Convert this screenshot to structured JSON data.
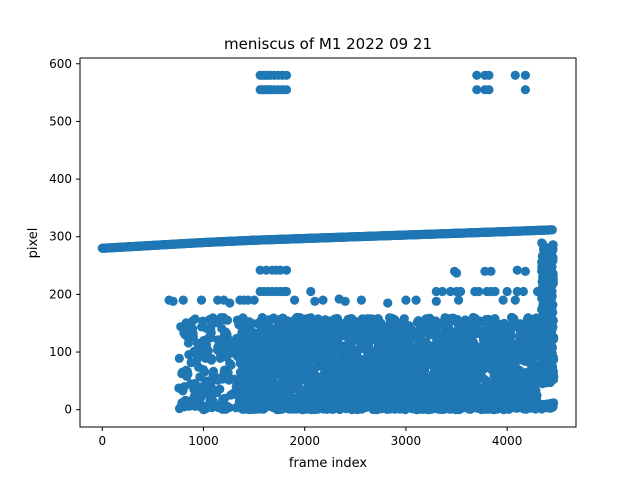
{
  "chart_data": {
    "type": "scatter",
    "title": "meniscus of M1 2022 09 21",
    "xlabel": "frame index",
    "ylabel": "pixel",
    "xlim": [
      -220,
      4680
    ],
    "ylim": [
      -30,
      610
    ],
    "xticks": [
      0,
      1000,
      2000,
      3000,
      4000
    ],
    "yticks": [
      0,
      100,
      200,
      300,
      400,
      500,
      600
    ],
    "grid": false,
    "legend": "none",
    "marker_color": "#1f77b4",
    "series": [
      {
        "kind": "trend_line",
        "x": [
          0,
          500,
          1000,
          1500,
          2000,
          2500,
          3000,
          3500,
          4000,
          4450
        ],
        "y": [
          280,
          285,
          290,
          294,
          297,
          300,
          303,
          306,
          309,
          312
        ]
      },
      {
        "kind": "upper_clusters",
        "points": [
          {
            "x": 1560,
            "y": 580
          },
          {
            "x": 1580,
            "y": 580
          },
          {
            "x": 1600,
            "y": 580
          },
          {
            "x": 1620,
            "y": 580
          },
          {
            "x": 1640,
            "y": 580
          },
          {
            "x": 1660,
            "y": 580
          },
          {
            "x": 1700,
            "y": 580
          },
          {
            "x": 1740,
            "y": 580
          },
          {
            "x": 1780,
            "y": 580
          },
          {
            "x": 1820,
            "y": 580
          },
          {
            "x": 1560,
            "y": 555
          },
          {
            "x": 1580,
            "y": 555
          },
          {
            "x": 1600,
            "y": 555
          },
          {
            "x": 1620,
            "y": 555
          },
          {
            "x": 1640,
            "y": 555
          },
          {
            "x": 1660,
            "y": 555
          },
          {
            "x": 1700,
            "y": 555
          },
          {
            "x": 1740,
            "y": 555
          },
          {
            "x": 1780,
            "y": 555
          },
          {
            "x": 1820,
            "y": 555
          },
          {
            "x": 3700,
            "y": 580
          },
          {
            "x": 3780,
            "y": 580
          },
          {
            "x": 3820,
            "y": 580
          },
          {
            "x": 3700,
            "y": 555
          },
          {
            "x": 3780,
            "y": 555
          },
          {
            "x": 3820,
            "y": 555
          },
          {
            "x": 4080,
            "y": 580
          },
          {
            "x": 4180,
            "y": 580
          },
          {
            "x": 4180,
            "y": 555
          }
        ]
      },
      {
        "kind": "level_240",
        "points": [
          {
            "x": 1560,
            "y": 242
          },
          {
            "x": 1620,
            "y": 242
          },
          {
            "x": 1680,
            "y": 242
          },
          {
            "x": 1720,
            "y": 242
          },
          {
            "x": 1760,
            "y": 242
          },
          {
            "x": 1820,
            "y": 242
          },
          {
            "x": 3480,
            "y": 240
          },
          {
            "x": 3500,
            "y": 237
          },
          {
            "x": 3780,
            "y": 240
          },
          {
            "x": 3840,
            "y": 240
          },
          {
            "x": 4100,
            "y": 242
          },
          {
            "x": 4180,
            "y": 240
          }
        ]
      },
      {
        "kind": "level_205",
        "points": [
          {
            "x": 1560,
            "y": 205
          },
          {
            "x": 1600,
            "y": 205
          },
          {
            "x": 1640,
            "y": 205
          },
          {
            "x": 1680,
            "y": 205
          },
          {
            "x": 1720,
            "y": 205
          },
          {
            "x": 1760,
            "y": 205
          },
          {
            "x": 1800,
            "y": 205
          },
          {
            "x": 1820,
            "y": 205
          },
          {
            "x": 2060,
            "y": 205
          },
          {
            "x": 3300,
            "y": 205
          },
          {
            "x": 3360,
            "y": 205
          },
          {
            "x": 3440,
            "y": 205
          },
          {
            "x": 3500,
            "y": 205
          },
          {
            "x": 3540,
            "y": 205
          },
          {
            "x": 3680,
            "y": 205
          },
          {
            "x": 3720,
            "y": 205
          },
          {
            "x": 3800,
            "y": 205
          },
          {
            "x": 3840,
            "y": 205
          },
          {
            "x": 3880,
            "y": 205
          },
          {
            "x": 4000,
            "y": 205
          },
          {
            "x": 4100,
            "y": 205
          },
          {
            "x": 4160,
            "y": 205
          },
          {
            "x": 4300,
            "y": 205
          },
          {
            "x": 4360,
            "y": 205
          },
          {
            "x": 4420,
            "y": 205
          }
        ]
      },
      {
        "kind": "level_190",
        "points": [
          {
            "x": 660,
            "y": 190
          },
          {
            "x": 700,
            "y": 188
          },
          {
            "x": 800,
            "y": 190
          },
          {
            "x": 980,
            "y": 190
          },
          {
            "x": 1140,
            "y": 190
          },
          {
            "x": 1200,
            "y": 190
          },
          {
            "x": 1260,
            "y": 185
          },
          {
            "x": 1360,
            "y": 190
          },
          {
            "x": 1400,
            "y": 190
          },
          {
            "x": 1440,
            "y": 190
          },
          {
            "x": 1500,
            "y": 190
          },
          {
            "x": 1900,
            "y": 190
          },
          {
            "x": 2100,
            "y": 188
          },
          {
            "x": 2180,
            "y": 190
          },
          {
            "x": 2340,
            "y": 192
          },
          {
            "x": 2400,
            "y": 188
          },
          {
            "x": 2560,
            "y": 190
          },
          {
            "x": 2820,
            "y": 185
          },
          {
            "x": 3000,
            "y": 190
          },
          {
            "x": 3100,
            "y": 190
          },
          {
            "x": 3300,
            "y": 188
          },
          {
            "x": 3520,
            "y": 190
          },
          {
            "x": 3960,
            "y": 190
          },
          {
            "x": 4080,
            "y": 190
          }
        ]
      },
      {
        "kind": "dense_band",
        "x_range": [
          750,
          4300
        ],
        "y_range": [
          0,
          160
        ],
        "count": 2600,
        "seed": 12345
      },
      {
        "kind": "dense_band_right",
        "x_range": [
          4340,
          4460
        ],
        "y_range": [
          45,
          290
        ],
        "count": 320,
        "seed": 777
      }
    ]
  }
}
